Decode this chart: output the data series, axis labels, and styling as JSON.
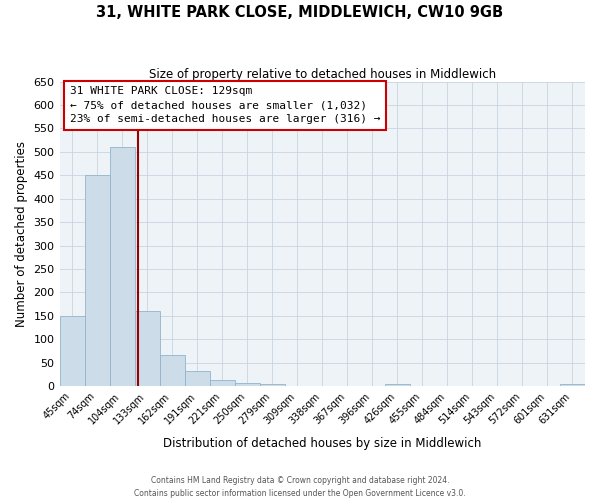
{
  "title": "31, WHITE PARK CLOSE, MIDDLEWICH, CW10 9GB",
  "subtitle": "Size of property relative to detached houses in Middlewich",
  "xlabel": "Distribution of detached houses by size in Middlewich",
  "ylabel": "Number of detached properties",
  "footer_line1": "Contains HM Land Registry data © Crown copyright and database right 2024.",
  "footer_line2": "Contains public sector information licensed under the Open Government Licence v3.0.",
  "bin_labels": [
    "45sqm",
    "74sqm",
    "104sqm",
    "133sqm",
    "162sqm",
    "191sqm",
    "221sqm",
    "250sqm",
    "279sqm",
    "309sqm",
    "338sqm",
    "367sqm",
    "396sqm",
    "426sqm",
    "455sqm",
    "484sqm",
    "514sqm",
    "543sqm",
    "572sqm",
    "601sqm",
    "631sqm"
  ],
  "bar_heights": [
    150,
    450,
    510,
    160,
    67,
    32,
    12,
    7,
    5,
    0,
    0,
    0,
    0,
    5,
    0,
    0,
    0,
    0,
    0,
    0,
    5
  ],
  "bar_color": "#ccdce8",
  "bar_edge_color": "#93b4cc",
  "background_color": "#eef3f8",
  "ylim": [
    0,
    650
  ],
  "yticks": [
    0,
    50,
    100,
    150,
    200,
    250,
    300,
    350,
    400,
    450,
    500,
    550,
    600,
    650
  ],
  "property_line_x": 2.62,
  "property_line_color": "#990000",
  "annotation_title": "31 WHITE PARK CLOSE: 129sqm",
  "annotation_line1": "← 75% of detached houses are smaller (1,032)",
  "annotation_line2": "23% of semi-detached houses are larger (316) →",
  "grid_color": "#c8d4e0"
}
